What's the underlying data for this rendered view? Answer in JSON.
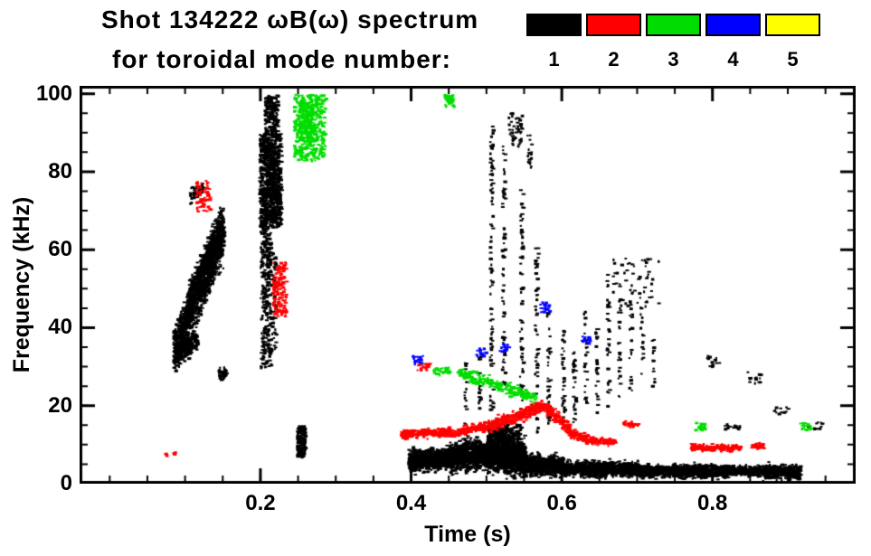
{
  "chart_data": {
    "type": "scatter",
    "title": "Shot 134222 ωB(ω) spectrum",
    "subtitle": "for toroidal mode number:",
    "xlabel": "Time (s)",
    "ylabel": "Frequency (kHz)",
    "xlim": [
      -0.04,
      0.99
    ],
    "ylim": [
      0,
      102
    ],
    "xticks": [
      0.2,
      0.4,
      0.6,
      0.8
    ],
    "xtick_labels": [
      "0.2",
      "0.4",
      "0.6",
      "0.8"
    ],
    "x_minor_step": 0.05,
    "yticks": [
      0,
      20,
      40,
      60,
      80,
      100
    ],
    "ytick_labels": [
      "0",
      "20",
      "40",
      "60",
      "80",
      "100"
    ],
    "y_minor_step": 5,
    "grid": false,
    "legend_position": "top-right",
    "legend": [
      {
        "label": "1",
        "color": "#000000"
      },
      {
        "label": "2",
        "color": "#ff0000"
      },
      {
        "label": "3",
        "color": "#00dd00"
      },
      {
        "label": "4",
        "color": "#0000ff"
      },
      {
        "label": "5",
        "color": "#ffff00"
      }
    ],
    "series": [
      {
        "name": "toroidal mode n=1",
        "color": "#000000",
        "clusters": [
          {
            "t0": 0.083,
            "t1": 0.15,
            "f0": 34,
            "f1": 64,
            "s": 6,
            "n": 1100
          },
          {
            "t0": 0.1,
            "t1": 0.148,
            "f0": 46,
            "f1": 68,
            "s": 4,
            "n": 450
          },
          {
            "t0": 0.088,
            "t1": 0.115,
            "f0": 33,
            "f1": 38,
            "s": 3,
            "n": 180
          },
          {
            "t0": 0.143,
            "t1": 0.153,
            "f0": 28,
            "f1": 29,
            "s": 1.5,
            "n": 50
          },
          {
            "t0": 0.105,
            "t1": 0.122,
            "f0": 74,
            "f1": 76,
            "s": 2,
            "n": 70
          },
          {
            "t0": 0.197,
            "t1": 0.226,
            "f0": 66,
            "f1": 90,
            "n": 950
          },
          {
            "t0": 0.199,
            "t1": 0.213,
            "f0": 30,
            "f1": 66,
            "n": 280
          },
          {
            "t0": 0.204,
            "t1": 0.222,
            "f0": 90,
            "f1": 100,
            "n": 170
          },
          {
            "t0": 0.214,
            "t1": 0.219,
            "f0": 34,
            "f1": 60,
            "n": 60
          },
          {
            "t0": 0.247,
            "t1": 0.258,
            "f0": 7,
            "f1": 15,
            "n": 170
          },
          {
            "t0": 0.395,
            "t1": 0.45,
            "f0": 6,
            "f1": 7,
            "s": 2.5,
            "n": 900
          },
          {
            "t0": 0.45,
            "t1": 0.5,
            "f0": 7,
            "f1": 8,
            "s": 3.5,
            "n": 900
          },
          {
            "t0": 0.5,
            "t1": 0.55,
            "f0": 8,
            "f1": 7,
            "s": 4.5,
            "n": 1100
          },
          {
            "t0": 0.5,
            "t1": 0.545,
            "f0": 13,
            "f1": 13,
            "s": 3,
            "n": 240
          },
          {
            "t0": 0.55,
            "t1": 0.6,
            "f0": 5,
            "f1": 5,
            "s": 2.5,
            "n": 700
          },
          {
            "t0": 0.6,
            "t1": 0.7,
            "f0": 4,
            "f1": 4,
            "s": 1.8,
            "n": 950
          },
          {
            "t0": 0.7,
            "t1": 0.82,
            "f0": 3.5,
            "f1": 3.5,
            "s": 1.6,
            "n": 950
          },
          {
            "t0": 0.82,
            "t1": 0.865,
            "f0": 3.5,
            "f1": 3.5,
            "s": 1.2,
            "n": 260
          },
          {
            "t0": 0.865,
            "t1": 0.915,
            "f0": 3.4,
            "f1": 3.0,
            "s": 1.8,
            "n": 420
          },
          {
            "t0": 0.503,
            "t1": 0.507,
            "f0": 18,
            "f1": 93,
            "n": 95
          },
          {
            "t0": 0.519,
            "t1": 0.523,
            "f0": 25,
            "f1": 88,
            "n": 70
          },
          {
            "t0": 0.543,
            "t1": 0.547,
            "f0": 14,
            "f1": 76,
            "n": 70
          },
          {
            "t0": 0.563,
            "t1": 0.567,
            "f0": 12,
            "f1": 62,
            "n": 55
          },
          {
            "t0": 0.579,
            "t1": 0.583,
            "f0": 15,
            "f1": 46,
            "n": 38
          },
          {
            "t0": 0.598,
            "t1": 0.602,
            "f0": 14,
            "f1": 40,
            "n": 35
          },
          {
            "t0": 0.613,
            "t1": 0.617,
            "f0": 16,
            "f1": 34,
            "n": 28
          },
          {
            "t0": 0.628,
            "t1": 0.632,
            "f0": 18,
            "f1": 45,
            "n": 30
          },
          {
            "t0": 0.643,
            "t1": 0.647,
            "f0": 18,
            "f1": 40,
            "n": 26
          },
          {
            "t0": 0.658,
            "t1": 0.662,
            "f0": 20,
            "f1": 55,
            "n": 30
          },
          {
            "t0": 0.673,
            "t1": 0.677,
            "f0": 22,
            "f1": 55,
            "n": 28
          },
          {
            "t0": 0.688,
            "t1": 0.692,
            "f0": 24,
            "f1": 50,
            "n": 24
          },
          {
            "t0": 0.703,
            "t1": 0.707,
            "f0": 28,
            "f1": 46,
            "n": 18
          },
          {
            "t0": 0.718,
            "t1": 0.722,
            "f0": 25,
            "f1": 38,
            "n": 14
          },
          {
            "t0": 0.468,
            "t1": 0.472,
            "f0": 15,
            "f1": 32,
            "n": 20
          },
          {
            "t0": 0.488,
            "t1": 0.492,
            "f0": 15,
            "f1": 35,
            "n": 22
          },
          {
            "t0": 0.528,
            "t1": 0.546,
            "f0": 86,
            "f1": 96,
            "n": 45
          },
          {
            "t0": 0.553,
            "t1": 0.559,
            "f0": 80,
            "f1": 90,
            "n": 18
          },
          {
            "t0": 0.66,
            "t1": 0.73,
            "f0": 45,
            "f1": 58,
            "n": 55
          },
          {
            "t0": 0.79,
            "t1": 0.81,
            "f0": 30,
            "f1": 33,
            "n": 14
          },
          {
            "t0": 0.845,
            "t1": 0.862,
            "f0": 26,
            "f1": 29,
            "n": 16
          },
          {
            "t0": 0.88,
            "t1": 0.9,
            "f0": 18,
            "f1": 20,
            "n": 12
          },
          {
            "t0": 0.815,
            "t1": 0.835,
            "f0": 14,
            "f1": 16,
            "n": 16
          },
          {
            "t0": 0.925,
            "t1": 0.945,
            "f0": 14,
            "f1": 16,
            "n": 14
          }
        ]
      },
      {
        "name": "toroidal mode n=2",
        "color": "#ff0000",
        "clusters": [
          {
            "t0": 0.072,
            "t1": 0.088,
            "f0": 7.5,
            "f1": 8.5,
            "n": 14
          },
          {
            "t0": 0.112,
            "t1": 0.132,
            "f0": 70,
            "f1": 78,
            "n": 60
          },
          {
            "t0": 0.215,
            "t1": 0.233,
            "f0": 43,
            "f1": 57,
            "n": 150
          },
          {
            "t0": 0.385,
            "t1": 0.46,
            "f0": 13,
            "f1": 13.5,
            "s": 1.1,
            "n": 260
          },
          {
            "t0": 0.46,
            "t1": 0.5,
            "f0": 13.5,
            "f1": 15,
            "s": 1.2,
            "n": 150
          },
          {
            "t0": 0.5,
            "t1": 0.545,
            "f0": 15,
            "f1": 18,
            "s": 1.5,
            "n": 180
          },
          {
            "t0": 0.545,
            "t1": 0.575,
            "f0": 18,
            "f1": 20.5,
            "s": 1.5,
            "n": 140
          },
          {
            "t0": 0.575,
            "t1": 0.61,
            "f0": 20,
            "f1": 14,
            "s": 1.5,
            "n": 150
          },
          {
            "t0": 0.61,
            "t1": 0.645,
            "f0": 13,
            "f1": 11,
            "s": 1.2,
            "n": 110
          },
          {
            "t0": 0.645,
            "t1": 0.67,
            "f0": 11,
            "f1": 11,
            "s": 0.9,
            "n": 60
          },
          {
            "t0": 0.68,
            "t1": 0.7,
            "f0": 15.5,
            "f1": 15.5,
            "s": 0.8,
            "n": 35
          },
          {
            "t0": 0.77,
            "t1": 0.835,
            "f0": 9.5,
            "f1": 9.5,
            "s": 0.8,
            "n": 190
          },
          {
            "t0": 0.85,
            "t1": 0.868,
            "f0": 10,
            "f1": 10,
            "s": 0.7,
            "n": 45
          },
          {
            "t0": 0.405,
            "t1": 0.425,
            "f0": 29,
            "f1": 31,
            "n": 20
          }
        ]
      },
      {
        "name": "toroidal mode n=3",
        "color": "#00dd00",
        "clusters": [
          {
            "t0": 0.243,
            "t1": 0.285,
            "f0": 83,
            "f1": 100,
            "n": 380
          },
          {
            "t0": 0.249,
            "t1": 0.268,
            "f0": 88,
            "f1": 98,
            "n": 200
          },
          {
            "t0": 0.46,
            "t1": 0.565,
            "f0": 29,
            "f1": 22,
            "s": 1.5,
            "n": 240
          },
          {
            "t0": 0.443,
            "t1": 0.455,
            "f0": 97,
            "f1": 100,
            "n": 45
          },
          {
            "t0": 0.425,
            "t1": 0.45,
            "f0": 28,
            "f1": 30,
            "n": 30
          },
          {
            "t0": 0.775,
            "t1": 0.79,
            "f0": 14,
            "f1": 16,
            "n": 25
          },
          {
            "t0": 0.915,
            "t1": 0.93,
            "f0": 14,
            "f1": 16,
            "n": 20
          }
        ]
      },
      {
        "name": "toroidal mode n=4",
        "color": "#0000ff",
        "clusters": [
          {
            "t0": 0.4,
            "t1": 0.415,
            "f0": 31,
            "f1": 33,
            "n": 18
          },
          {
            "t0": 0.485,
            "t1": 0.498,
            "f0": 33,
            "f1": 35,
            "n": 16
          },
          {
            "t0": 0.515,
            "t1": 0.528,
            "f0": 34,
            "f1": 36,
            "n": 14
          },
          {
            "t0": 0.57,
            "t1": 0.582,
            "f0": 44,
            "f1": 47,
            "n": 20
          },
          {
            "t0": 0.625,
            "t1": 0.638,
            "f0": 36,
            "f1": 38,
            "n": 14
          }
        ]
      },
      {
        "name": "toroidal mode n=5",
        "color": "#ffff00",
        "clusters": []
      }
    ]
  }
}
